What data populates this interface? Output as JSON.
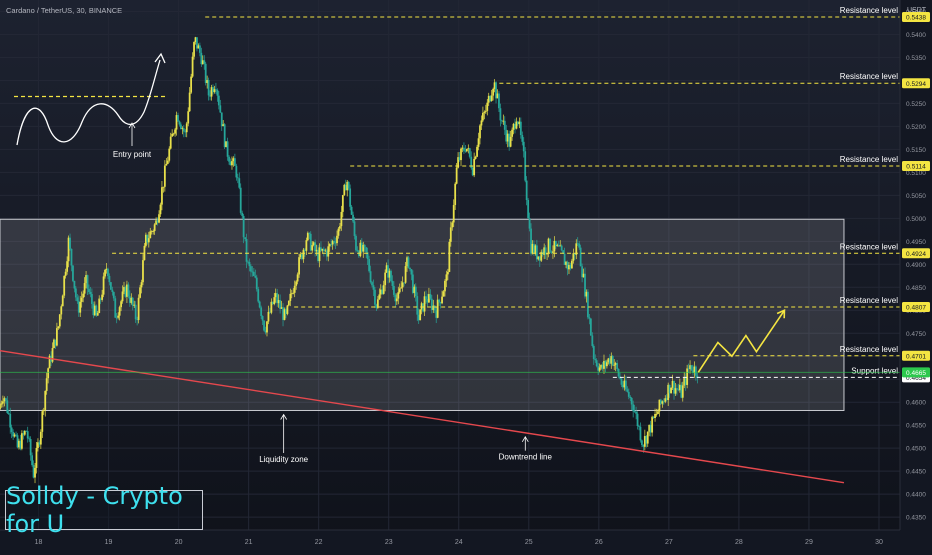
{
  "header": {
    "title": "Cardano / TetherUS, 30, BINANCE",
    "currency": "USDT"
  },
  "watermark": "Solldy - Crypto for U",
  "colors": {
    "background": "#131722",
    "bull": "#e8e04a",
    "bear": "#26a69a",
    "level_line": "#f4e542",
    "support_line": "#ffffff",
    "downtrend": "#e5484d",
    "zone_fill": "#ffffff",
    "current_price": "#2cc84d"
  },
  "chart_data": {
    "type": "candlestick",
    "title": "Cardano / TetherUS, 30, BINANCE",
    "x_axis": {
      "ticks": [
        "18",
        "19",
        "20",
        "21",
        "22",
        "23",
        "24",
        "25",
        "26",
        "27",
        "28",
        "29",
        "30"
      ],
      "range_days": [
        17.45,
        30.3
      ]
    },
    "y_axis": {
      "unit": "USDT",
      "ticks": [
        "0.5450",
        "0.5400",
        "0.5350",
        "0.5300",
        "0.5250",
        "0.5200",
        "0.5150",
        "0.5100",
        "0.5050",
        "0.5000",
        "0.4950",
        "0.4900",
        "0.4850",
        "0.4800",
        "0.4750",
        "0.4700",
        "0.4650",
        "0.4600",
        "0.4550",
        "0.4500",
        "0.4450",
        "0.4400",
        "0.4350"
      ],
      "range": [
        0.4322,
        0.5475
      ]
    },
    "price_path": [
      [
        17.45,
        0.4585
      ],
      [
        17.52,
        0.462
      ],
      [
        17.6,
        0.457
      ],
      [
        17.72,
        0.45
      ],
      [
        17.85,
        0.454
      ],
      [
        17.95,
        0.4445
      ],
      [
        18.05,
        0.454
      ],
      [
        18.15,
        0.467
      ],
      [
        18.3,
        0.476
      ],
      [
        18.45,
        0.495
      ],
      [
        18.58,
        0.48
      ],
      [
        18.7,
        0.486
      ],
      [
        18.85,
        0.478
      ],
      [
        19.0,
        0.49
      ],
      [
        19.12,
        0.479
      ],
      [
        19.28,
        0.485
      ],
      [
        19.42,
        0.478
      ],
      [
        19.55,
        0.495
      ],
      [
        19.7,
        0.499
      ],
      [
        19.85,
        0.512
      ],
      [
        20.0,
        0.523
      ],
      [
        20.12,
        0.518
      ],
      [
        20.25,
        0.539
      ],
      [
        20.35,
        0.535
      ],
      [
        20.45,
        0.527
      ],
      [
        20.55,
        0.53
      ],
      [
        20.7,
        0.515
      ],
      [
        20.85,
        0.51
      ],
      [
        21.0,
        0.49
      ],
      [
        21.12,
        0.486
      ],
      [
        21.25,
        0.476
      ],
      [
        21.4,
        0.483
      ],
      [
        21.55,
        0.478
      ],
      [
        21.7,
        0.488
      ],
      [
        21.85,
        0.496
      ],
      [
        22.0,
        0.492
      ],
      [
        22.15,
        0.493
      ],
      [
        22.3,
        0.497
      ],
      [
        22.42,
        0.509
      ],
      [
        22.55,
        0.494
      ],
      [
        22.7,
        0.492
      ],
      [
        22.85,
        0.481
      ],
      [
        23.0,
        0.489
      ],
      [
        23.15,
        0.482
      ],
      [
        23.3,
        0.491
      ],
      [
        23.45,
        0.478
      ],
      [
        23.55,
        0.483
      ],
      [
        23.7,
        0.48
      ],
      [
        23.85,
        0.487
      ],
      [
        23.92,
        0.499
      ],
      [
        24.0,
        0.512
      ],
      [
        24.12,
        0.516
      ],
      [
        24.22,
        0.511
      ],
      [
        24.32,
        0.52
      ],
      [
        24.42,
        0.524
      ],
      [
        24.52,
        0.53
      ],
      [
        24.62,
        0.522
      ],
      [
        24.75,
        0.516
      ],
      [
        24.85,
        0.523
      ],
      [
        24.95,
        0.513
      ],
      [
        25.05,
        0.494
      ],
      [
        25.15,
        0.492
      ],
      [
        25.3,
        0.494
      ],
      [
        25.45,
        0.493
      ],
      [
        25.6,
        0.489
      ],
      [
        25.72,
        0.495
      ],
      [
        25.85,
        0.482
      ],
      [
        25.95,
        0.47
      ],
      [
        26.05,
        0.467
      ],
      [
        26.2,
        0.47
      ],
      [
        26.35,
        0.464
      ],
      [
        26.5,
        0.46
      ],
      [
        26.65,
        0.451
      ],
      [
        26.8,
        0.456
      ],
      [
        26.92,
        0.46
      ],
      [
        27.05,
        0.464
      ],
      [
        27.2,
        0.462
      ],
      [
        27.32,
        0.468
      ],
      [
        27.42,
        0.4668
      ]
    ],
    "levels": [
      {
        "label": "Resistance level",
        "price": 0.5438,
        "price_label": "0.5438",
        "from_day": 20.38
      },
      {
        "label": "Resistance level",
        "price": 0.5294,
        "price_label": "0.5294",
        "from_day": 24.58
      },
      {
        "label": "Resistance level",
        "price": 0.5114,
        "price_label": "0.5114",
        "from_day": 22.45
      },
      {
        "label": "Resistance level",
        "price": 0.4924,
        "price_label": "0.4924",
        "from_day": 19.05
      },
      {
        "label": "Resistance level",
        "price": 0.4807,
        "price_label": "0.4807",
        "from_day": 21.65
      },
      {
        "label": "Resistance level",
        "price": 0.4701,
        "price_label": "0.4701",
        "from_day": 27.35
      },
      {
        "label": "Support level",
        "price": 0.4654,
        "price_label": "0.4654",
        "from_day": 26.2
      }
    ],
    "current_price": {
      "price": 0.4665,
      "label": "0.4665"
    },
    "liquidity_zone": {
      "label": "Liquidity zone",
      "price_top": 0.4998,
      "price_bottom": 0.4582,
      "from_day": 17.45,
      "to_day": 29.5
    },
    "downtrend_line": {
      "label": "Downtrend line",
      "from": [
        17.45,
        0.4712
      ],
      "to": [
        29.5,
        0.4425
      ]
    },
    "projection": [
      [
        27.42,
        0.4665
      ],
      [
        27.7,
        0.473
      ],
      [
        27.9,
        0.47
      ],
      [
        28.1,
        0.4745
      ],
      [
        28.25,
        0.471
      ],
      [
        28.65,
        0.48
      ]
    ],
    "entry_sketch": {
      "label": "Entry point",
      "level_price": 0.5265
    },
    "annotations": [
      {
        "text": "Liquidity zone",
        "day": 21.5,
        "price": 0.447
      },
      {
        "text": "Downtrend line",
        "day": 24.95,
        "price": 0.4475
      }
    ]
  }
}
